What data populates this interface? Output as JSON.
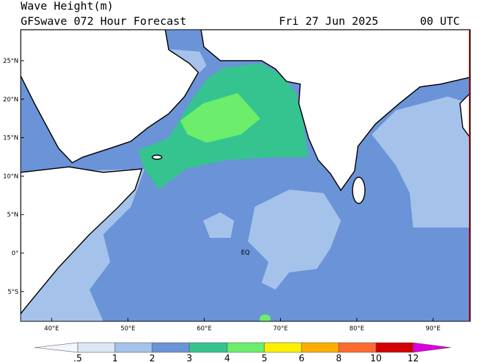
{
  "header": {
    "title": "Wave Height(m)",
    "model": "GFSwave 072 Hour Forecast",
    "date": "Fri 27 Jun 2025",
    "time": "00 UTC"
  },
  "map": {
    "lat_labels": [
      "25°N",
      "20°N",
      "15°N",
      "10°N",
      "5°N",
      "0°",
      "5°S"
    ],
    "lon_labels": [
      "40°E",
      "50°E",
      "60°E",
      "70°E",
      "80°E",
      "90°E"
    ],
    "annotation": "EQ"
  },
  "colorbar": {
    "labels": [
      ".5",
      "1",
      "2",
      "3",
      "4",
      "5",
      "6",
      "8",
      "10",
      "12"
    ]
  }
}
